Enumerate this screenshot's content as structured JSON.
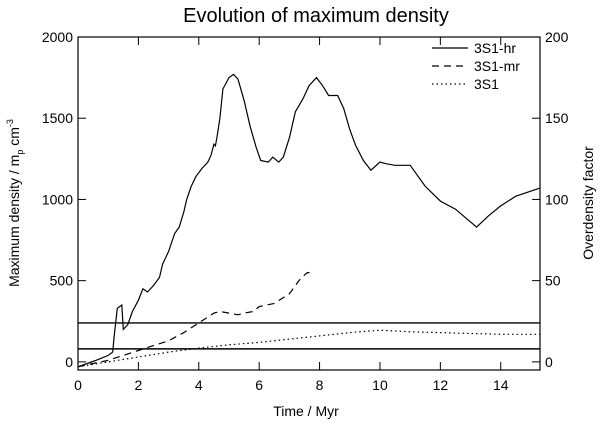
{
  "chart_data": {
    "type": "line",
    "title": "Evolution of maximum density",
    "xlabel": "Time / Myr",
    "ylabel_left": [
      "Maximum density / m",
      "p",
      " cm",
      "-3"
    ],
    "ylabel_right": "Overdensity factor",
    "xlim": [
      0,
      15.3
    ],
    "ylim_left": [
      -50,
      2000
    ],
    "ylim_right": [
      -5,
      200
    ],
    "xticks": [
      0,
      2,
      4,
      6,
      8,
      10,
      12,
      14
    ],
    "yticks_left": [
      0,
      500,
      1000,
      1500,
      2000
    ],
    "yticks_right": [
      0,
      50,
      100,
      150,
      200
    ],
    "legend_position": "top-right",
    "series": [
      {
        "name": "3S1-hr",
        "dash": "solid",
        "points": [
          [
            0,
            -30
          ],
          [
            0.3,
            -10
          ],
          [
            0.6,
            10
          ],
          [
            1.0,
            40
          ],
          [
            1.15,
            60
          ],
          [
            1.2,
            160
          ],
          [
            1.3,
            330
          ],
          [
            1.45,
            350
          ],
          [
            1.5,
            200
          ],
          [
            1.65,
            230
          ],
          [
            1.8,
            310
          ],
          [
            2.0,
            380
          ],
          [
            2.15,
            450
          ],
          [
            2.3,
            430
          ],
          [
            2.5,
            470
          ],
          [
            2.7,
            520
          ],
          [
            2.8,
            600
          ],
          [
            3.0,
            680
          ],
          [
            3.2,
            790
          ],
          [
            3.35,
            830
          ],
          [
            3.5,
            920
          ],
          [
            3.6,
            1000
          ],
          [
            3.75,
            1080
          ],
          [
            3.9,
            1140
          ],
          [
            4.1,
            1190
          ],
          [
            4.3,
            1230
          ],
          [
            4.4,
            1270
          ],
          [
            4.5,
            1340
          ],
          [
            4.55,
            1330
          ],
          [
            4.6,
            1380
          ],
          [
            4.7,
            1500
          ],
          [
            4.8,
            1680
          ],
          [
            5.0,
            1750
          ],
          [
            5.15,
            1770
          ],
          [
            5.3,
            1740
          ],
          [
            5.5,
            1610
          ],
          [
            5.7,
            1450
          ],
          [
            5.9,
            1320
          ],
          [
            6.05,
            1240
          ],
          [
            6.3,
            1230
          ],
          [
            6.45,
            1260
          ],
          [
            6.65,
            1230
          ],
          [
            6.8,
            1260
          ],
          [
            7.0,
            1380
          ],
          [
            7.2,
            1540
          ],
          [
            7.45,
            1620
          ],
          [
            7.65,
            1700
          ],
          [
            7.9,
            1750
          ],
          [
            8.1,
            1700
          ],
          [
            8.3,
            1640
          ],
          [
            8.6,
            1640
          ],
          [
            8.8,
            1560
          ],
          [
            9.0,
            1430
          ],
          [
            9.2,
            1330
          ],
          [
            9.45,
            1240
          ],
          [
            9.7,
            1180
          ],
          [
            10.0,
            1230
          ],
          [
            10.2,
            1220
          ],
          [
            10.5,
            1210
          ],
          [
            11.0,
            1210
          ],
          [
            11.5,
            1080
          ],
          [
            12.0,
            990
          ],
          [
            12.5,
            940
          ],
          [
            13.2,
            830
          ],
          [
            13.6,
            900
          ],
          [
            14.0,
            960
          ],
          [
            14.5,
            1020
          ],
          [
            15.3,
            1070
          ]
        ]
      },
      {
        "name": "3S1-mr",
        "dash": "dashed",
        "points": [
          [
            0,
            -30
          ],
          [
            0.5,
            -10
          ],
          [
            1.0,
            10
          ],
          [
            1.5,
            40
          ],
          [
            2.0,
            70
          ],
          [
            2.5,
            100
          ],
          [
            3.0,
            130
          ],
          [
            3.5,
            180
          ],
          [
            4.0,
            240
          ],
          [
            4.5,
            300
          ],
          [
            4.7,
            310
          ],
          [
            5.0,
            300
          ],
          [
            5.3,
            290
          ],
          [
            5.5,
            300
          ],
          [
            5.8,
            310
          ],
          [
            6.0,
            340
          ],
          [
            6.5,
            360
          ],
          [
            7.0,
            420
          ],
          [
            7.2,
            470
          ],
          [
            7.4,
            520
          ],
          [
            7.6,
            550
          ],
          [
            7.8,
            545
          ]
        ]
      },
      {
        "name": "3S1",
        "dash": "dotted",
        "points": [
          [
            0,
            -30
          ],
          [
            1.0,
            0
          ],
          [
            2.0,
            30
          ],
          [
            3.0,
            60
          ],
          [
            4.0,
            85
          ],
          [
            5.0,
            105
          ],
          [
            6.0,
            120
          ],
          [
            7.0,
            140
          ],
          [
            8.0,
            160
          ],
          [
            9.0,
            180
          ],
          [
            10.0,
            195
          ],
          [
            11.0,
            185
          ],
          [
            12.0,
            180
          ],
          [
            13.0,
            175
          ],
          [
            14.0,
            170
          ],
          [
            15.3,
            170
          ]
        ]
      }
    ],
    "hlines": [
      240,
      80
    ]
  }
}
